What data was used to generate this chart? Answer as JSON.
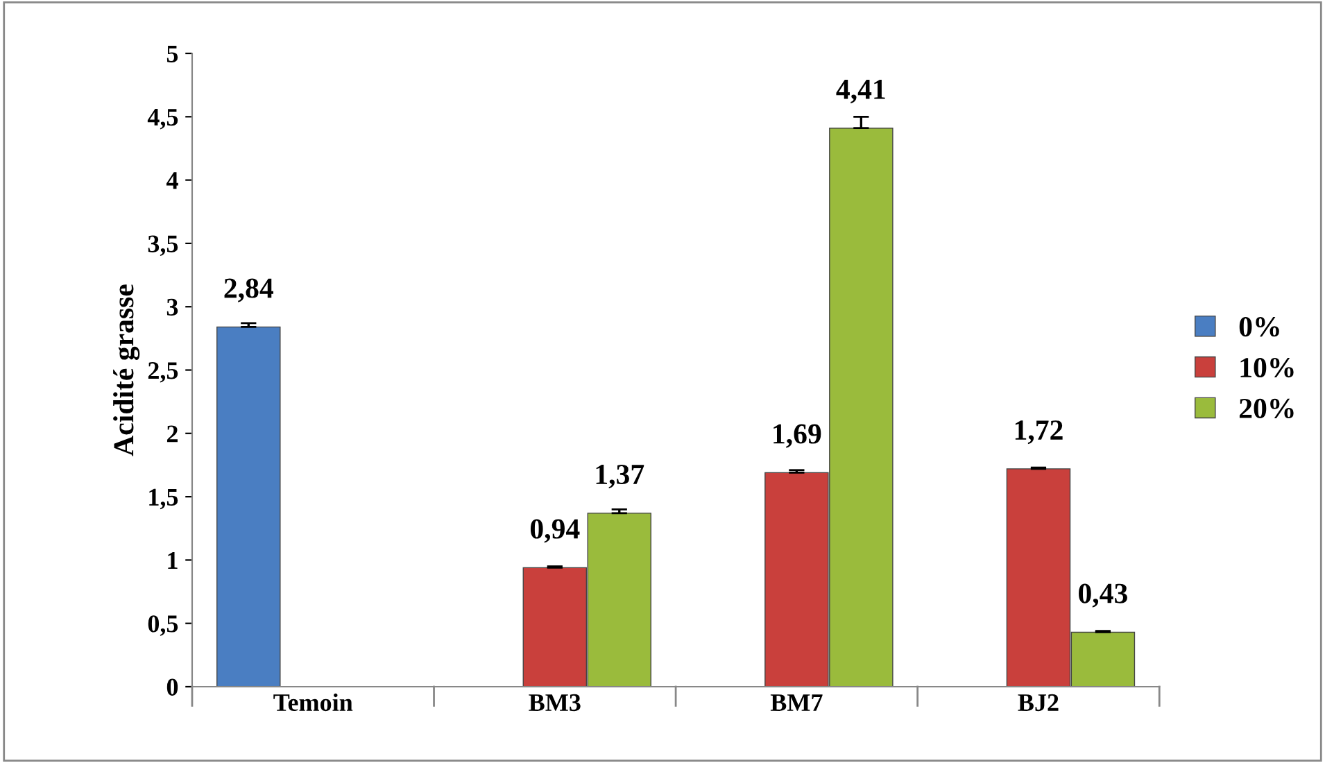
{
  "chart_data": {
    "type": "bar",
    "ylabel": "Acidité grasse",
    "categories": [
      "Temoin",
      "BM3",
      "BM7",
      "BJ2"
    ],
    "series": [
      {
        "name": "0%",
        "color": "#4a7ec2",
        "values": [
          2.84,
          null,
          null,
          null
        ],
        "errors": [
          [
            2.84,
            2.87
          ],
          null,
          null,
          null
        ],
        "value_labels": [
          "2,84",
          null,
          null,
          null
        ]
      },
      {
        "name": "10%",
        "color": "#c9403c",
        "values": [
          null,
          0.94,
          1.69,
          1.72
        ],
        "errors": [
          null,
          [
            0.94,
            0.95
          ],
          [
            1.69,
            1.71
          ],
          [
            1.72,
            1.73
          ]
        ],
        "value_labels": [
          null,
          "0,94",
          "1,69",
          "1,72"
        ]
      },
      {
        "name": "20%",
        "color": "#9abb3c",
        "values": [
          null,
          1.37,
          4.41,
          0.43
        ],
        "errors": [
          null,
          [
            1.37,
            1.4
          ],
          [
            4.41,
            4.5
          ],
          [
            0.43,
            0.44
          ]
        ],
        "value_labels": [
          null,
          "1,37",
          "4,41",
          "0,43"
        ]
      }
    ],
    "ylim": [
      0,
      5
    ],
    "yticks": [
      0,
      {
        "value": 0.5,
        "label": "0,5"
      },
      1,
      {
        "value": 1.5,
        "label": "1,5"
      },
      2,
      {
        "value": 2.5,
        "label": "2,5"
      },
      3,
      {
        "value": 3.5,
        "label": "3,5"
      },
      4,
      {
        "value": 4.5,
        "label": "4,5"
      },
      5
    ],
    "grid": false,
    "legend": "right"
  }
}
